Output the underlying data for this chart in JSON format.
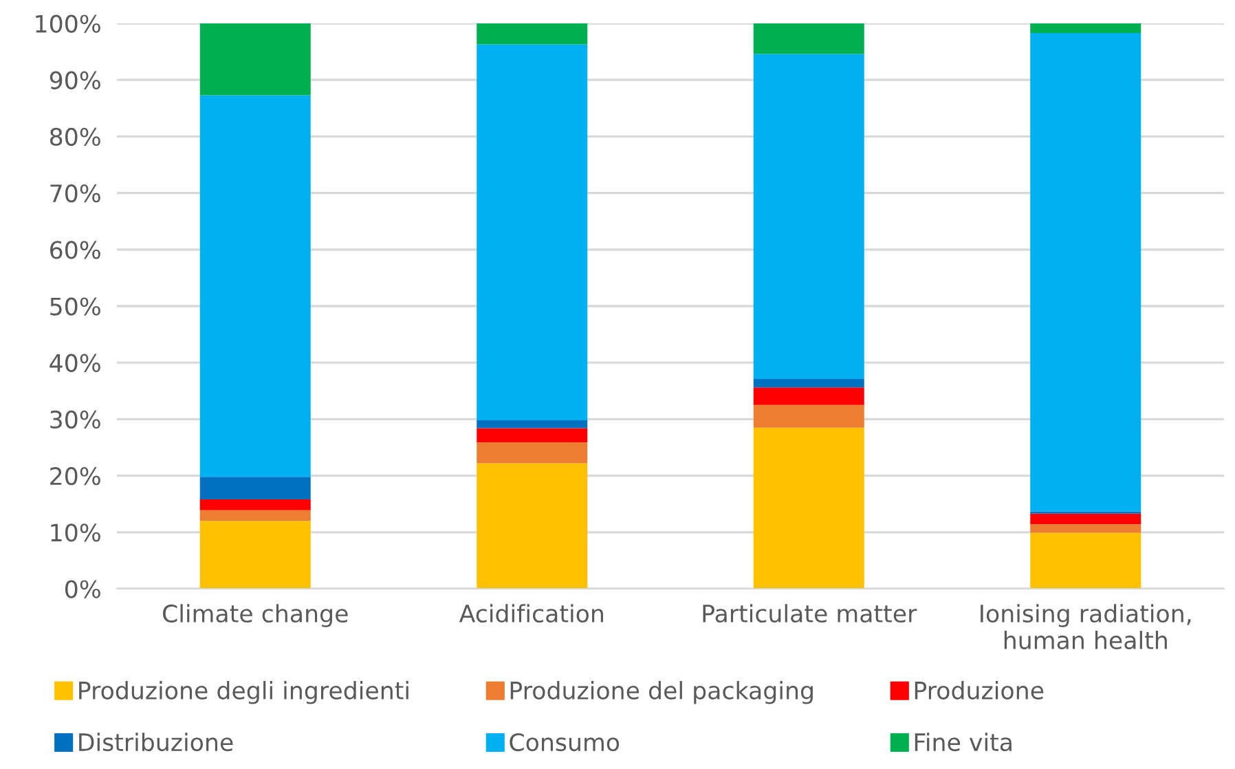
{
  "chart_data": {
    "type": "bar",
    "stacked": true,
    "categories": [
      "Climate change",
      "Acidification",
      "Particulate matter",
      "Ionising radiation,\nhuman health"
    ],
    "series": [
      {
        "name": "Produzione degli ingredienti",
        "color": "#ffc000",
        "values": [
          12,
          22.2,
          28.5,
          9.9
        ]
      },
      {
        "name": "Produzione del packaging",
        "color": "#ed7d31",
        "values": [
          1.9,
          3.7,
          4,
          1.5
        ]
      },
      {
        "name": "Produzione",
        "color": "#ff0000",
        "values": [
          1.9,
          2.5,
          3.1,
          1.9
        ]
      },
      {
        "name": "Distribuzione",
        "color": "#0070c0",
        "values": [
          4,
          1.4,
          1.5,
          0.4
        ]
      },
      {
        "name": "Consumo",
        "color": "#00b0f0",
        "values": [
          67.5,
          66.5,
          57.5,
          84.6
        ]
      },
      {
        "name": "Fine vita",
        "color": "#00b050",
        "values": [
          12.7,
          3.7,
          5.4,
          1.7
        ]
      }
    ],
    "ylim": [
      0,
      100
    ],
    "yticks": [
      {
        "value": 0,
        "label": "0%"
      },
      {
        "value": 10,
        "label": "10%"
      },
      {
        "value": 20,
        "label": "20%"
      },
      {
        "value": 30,
        "label": "30%"
      },
      {
        "value": 40,
        "label": "40%"
      },
      {
        "value": 50,
        "label": "50%"
      },
      {
        "value": 60,
        "label": "60%"
      },
      {
        "value": 70,
        "label": "70%"
      },
      {
        "value": 80,
        "label": "80%"
      },
      {
        "value": 90,
        "label": "90%"
      },
      {
        "value": 100,
        "label": "100%"
      }
    ],
    "grid": "y",
    "legend": "bottom"
  }
}
